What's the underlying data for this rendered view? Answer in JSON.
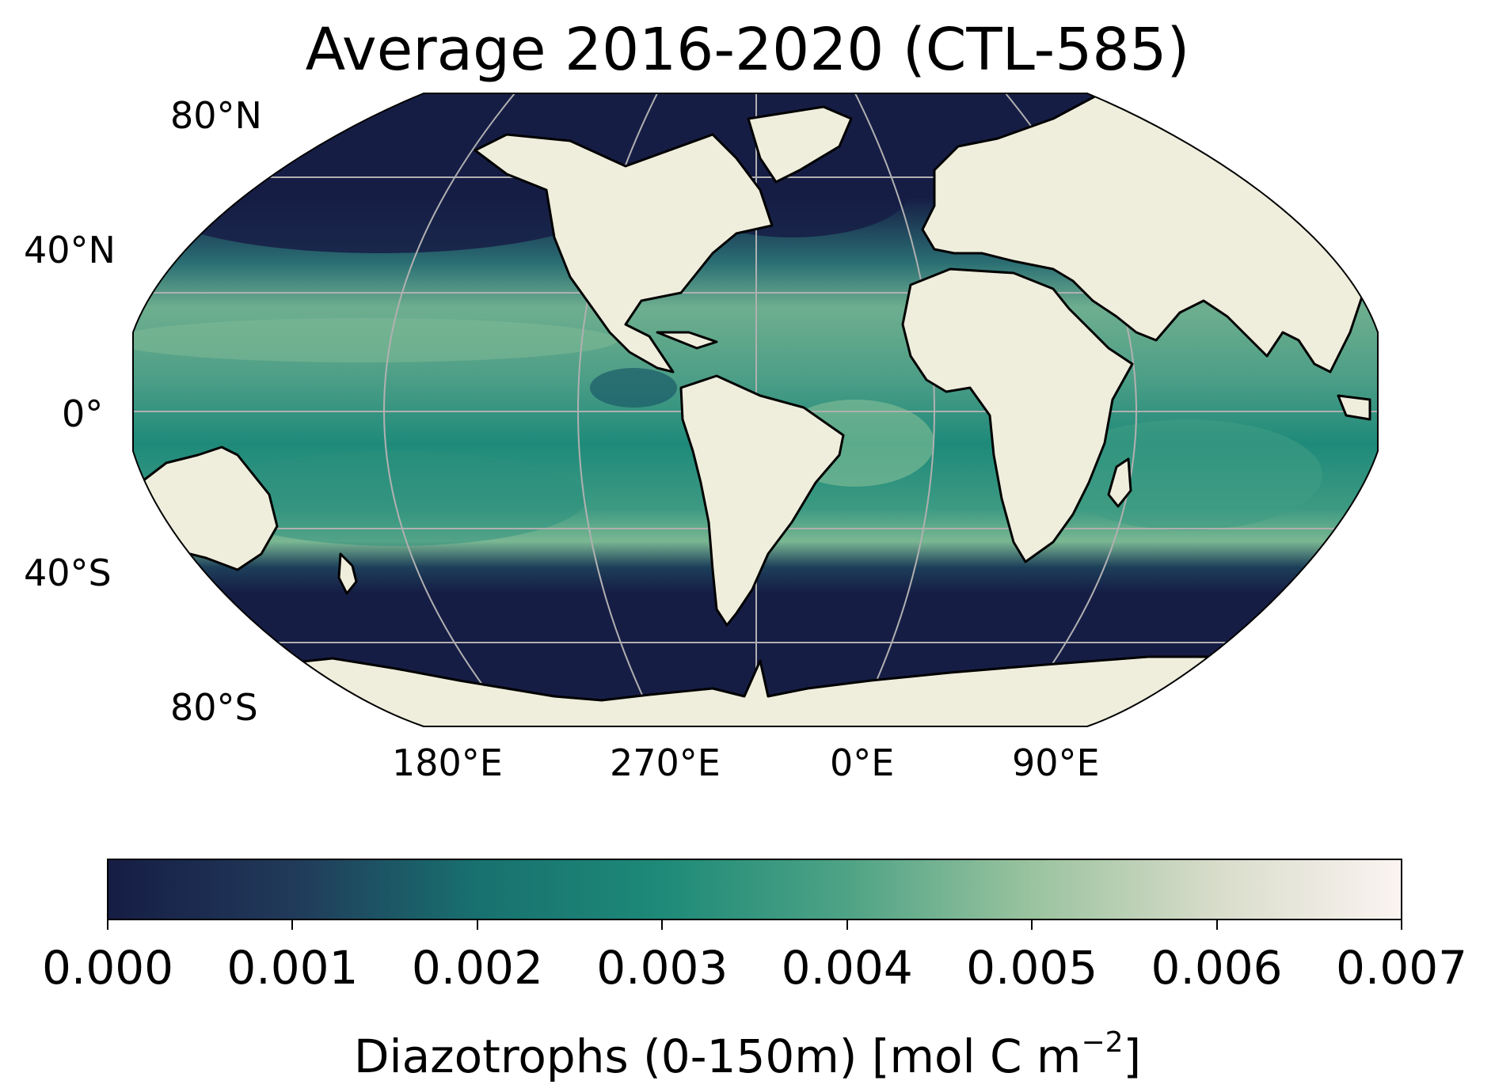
{
  "title": "Average 2016-2020 (CTL-585)",
  "map": {
    "projection": "Robinson",
    "colors": {
      "ocean_low": "#161d45",
      "ocean_mid": "#1a7c78",
      "ocean_high": "#82bb96",
      "land": "#efeedd",
      "coast": "#000000",
      "grid": "#b0b0b0"
    },
    "lat_labels": [
      "80°N",
      "40°N",
      "0°",
      "40°S",
      "80°S"
    ],
    "lon_labels": [
      "180°E",
      "270°E",
      "0°E",
      "90°E"
    ]
  },
  "colorbar": {
    "ticks": [
      "0.000",
      "0.001",
      "0.002",
      "0.003",
      "0.004",
      "0.005",
      "0.006",
      "0.007"
    ],
    "vmin": 0.0,
    "vmax": 0.007,
    "label_main": "Diazotrophs (0-150m) [mol C m",
    "label_sup": "−2",
    "label_end": "]",
    "colors": [
      "#161d45",
      "#213a5a",
      "#18716f",
      "#1e8a78",
      "#4ea385",
      "#9ac39f",
      "#d8dcca",
      "#fbf4f1"
    ]
  }
}
